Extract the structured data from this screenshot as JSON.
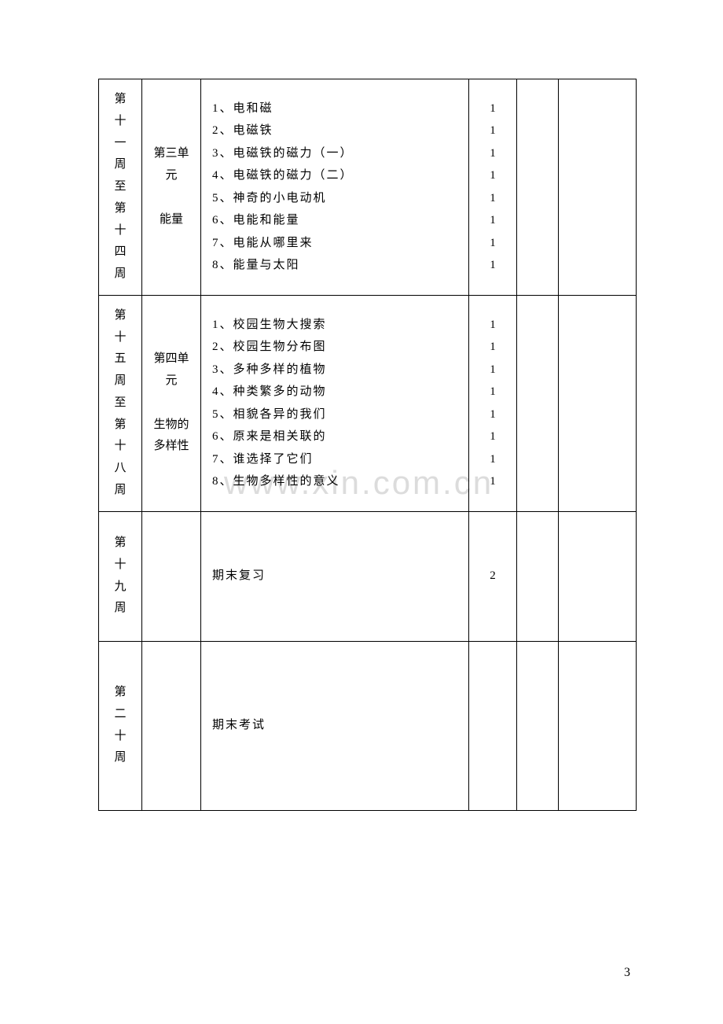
{
  "watermark": "www.xin.com.cn",
  "page_number": "3",
  "rows": [
    {
      "week": "第十一周至第十四周",
      "unit": "第三单元\n\n能量",
      "content": [
        "1、电和磁",
        "2、电磁铁",
        "3、电磁铁的磁力（一）",
        "4、电磁铁的磁力（二）",
        "5、神奇的小电动机",
        "6、电能和能量",
        "7、电能从哪里来",
        "8、能量与太阳"
      ],
      "hours": [
        "1",
        "1",
        "1",
        "1",
        "1",
        "1",
        "1",
        "1"
      ],
      "row_class": "row-tall"
    },
    {
      "week": "第十五周至第十八周",
      "unit": "第四单元\n\n生物的多样性",
      "content": [
        "1、校园生物大搜索",
        "2、校园生物分布图",
        "3、多种多样的植物",
        "4、种类繁多的动物",
        "5、相貌各异的我们",
        "6、原来是相关联的",
        "7、谁选择了它们",
        "8、生物多样性的意义"
      ],
      "hours": [
        "1",
        "1",
        "1",
        "1",
        "1",
        "1",
        "1",
        "1"
      ],
      "row_class": "row-tall2"
    },
    {
      "week": "第十九周",
      "unit": "",
      "content_single": "期末复习",
      "hours_single": "2",
      "row_class": "row-short"
    },
    {
      "week": "第二十周",
      "unit": "",
      "content_single": "期末考试",
      "hours_single": "",
      "row_class": "row-exam"
    }
  ]
}
